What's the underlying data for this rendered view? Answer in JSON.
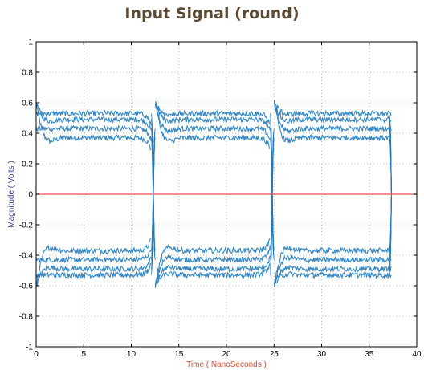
{
  "chart_data": {
    "type": "line",
    "title": "Input Signal (round)",
    "xlabel": "Time ( NanoSeconds )",
    "ylabel": "Magnitude ( Volts )",
    "xlim": [
      0,
      40
    ],
    "ylim": [
      -1,
      1
    ],
    "xticks": [
      0,
      5,
      10,
      15,
      20,
      25,
      30,
      35,
      40
    ],
    "yticks": [
      -1,
      -0.8,
      -0.6,
      -0.4,
      -0.2,
      0,
      0.2,
      0.4,
      0.6,
      0.8,
      1
    ],
    "grid": true,
    "colors": {
      "signal": "#1f7bbf",
      "reference": "#e05050"
    },
    "series": [
      {
        "style": "eye-diagram",
        "x_start": 0,
        "x_end": 37.3,
        "transition_times": [
          12.3,
          24.8
        ],
        "levels": [
          0.37,
          0.43,
          0.49,
          0.53,
          -0.37,
          -0.43,
          -0.49,
          -0.53
        ],
        "overshoot_peak": 0.6
      },
      {
        "style": "horizontal-line",
        "y": 0
      }
    ]
  }
}
